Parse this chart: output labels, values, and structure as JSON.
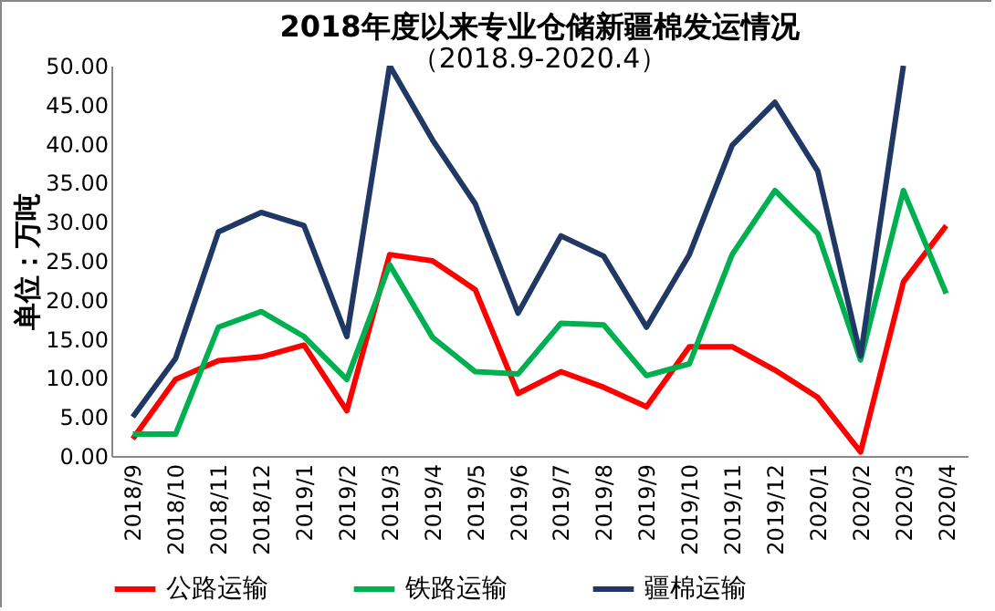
{
  "chart_data": {
    "type": "line",
    "title": "2018年度以来专业仓储新疆棉发运情况",
    "subtitle": "（2018.9-2020.4）",
    "ylabel": "单位：万吨",
    "categories": [
      "2018/9",
      "2018/10",
      "2018/11",
      "2018/12",
      "2019/1",
      "2019/2",
      "2019/3",
      "2019/4",
      "2019/5",
      "2019/6",
      "2019/7",
      "2019/8",
      "2019/9",
      "2019/10",
      "2019/11",
      "2019/12",
      "2020/1",
      "2020/2",
      "2020/3",
      "2020/4"
    ],
    "series": [
      {
        "name": "公路运输",
        "color": "#ff0000",
        "values": [
          2.2,
          9.8,
          12.2,
          12.7,
          14.2,
          5.8,
          25.8,
          25.0,
          21.3,
          8.0,
          10.8,
          8.8,
          6.3,
          14.0,
          14.0,
          11.0,
          7.5,
          0.5,
          22.3,
          29.5
        ]
      },
      {
        "name": "铁路运输",
        "color": "#00b050",
        "values": [
          2.8,
          2.8,
          16.5,
          18.5,
          15.3,
          9.8,
          24.5,
          15.2,
          10.8,
          10.5,
          17.0,
          16.8,
          10.3,
          11.8,
          25.8,
          34.0,
          28.5,
          12.3,
          34.0,
          20.8
        ]
      },
      {
        "name": "疆棉运输",
        "color": "#203864",
        "values": [
          5.0,
          12.5,
          28.7,
          31.2,
          29.5,
          15.3,
          50.0,
          40.5,
          32.3,
          18.3,
          28.2,
          25.6,
          16.5,
          25.8,
          39.8,
          45.3,
          36.5,
          12.8,
          50.0,
          null
        ]
      }
    ],
    "ylim": [
      0,
      50
    ],
    "yticks": [
      {
        "value": 0,
        "label": "0.00"
      },
      {
        "value": 5,
        "label": "5.00"
      },
      {
        "value": 10,
        "label": "10.00"
      },
      {
        "value": 15,
        "label": "15.00"
      },
      {
        "value": 20,
        "label": "20.00"
      },
      {
        "value": 25,
        "label": "25.00"
      },
      {
        "value": 30,
        "label": "30.00"
      },
      {
        "value": 35,
        "label": "35.00"
      },
      {
        "value": 40,
        "label": "40.00"
      },
      {
        "value": 45,
        "label": "45.00"
      },
      {
        "value": 50,
        "label": "50.00"
      }
    ],
    "grid": false,
    "legend": "bottom",
    "marker": "none",
    "line_style": "solid"
  }
}
